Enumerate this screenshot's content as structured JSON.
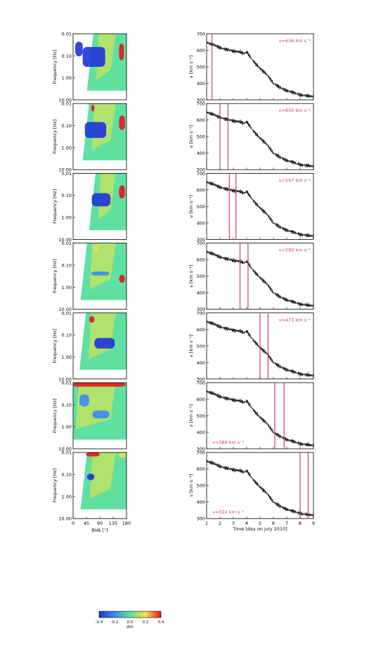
{
  "chart_data": {
    "type": "heatmap",
    "left_panels": {
      "ylabel": "Frequency [Hz]",
      "yticks": [
        "0.01",
        "0.10",
        "1.00",
        "10.00"
      ],
      "ylim": [
        0.01,
        10.0
      ],
      "yscale": "log",
      "xlabel": "θVB [°]",
      "xticks": [
        "0",
        "45",
        "90",
        "135",
        "180"
      ],
      "xlim": [
        0,
        180
      ],
      "colorbar": {
        "ticks": [
          "-0.4",
          "-0.2",
          "0.0",
          "0.2",
          "0.4"
        ],
        "label": "σm",
        "range": [
          -0.4,
          0.4
        ]
      }
    },
    "right_panels": {
      "ylabel": "v [km s⁻¹]",
      "yticks": [
        "300",
        "400",
        "500",
        "600",
        "700"
      ],
      "ylim": [
        300,
        700
      ],
      "xlabel": "Time [day on july 2010]",
      "xticks": [
        "1",
        "2",
        "3",
        "4",
        "5",
        "6",
        "7",
        "8",
        "9"
      ],
      "xlim": [
        1,
        9
      ],
      "series": {
        "x": [
          1.0,
          1.2,
          1.5,
          2.0,
          2.5,
          3.0,
          3.5,
          3.8,
          4.0,
          4.3,
          4.6,
          5.0,
          5.5,
          6.0,
          6.5,
          7.0,
          7.5,
          8.0,
          8.5,
          9.0
        ],
        "y": [
          650,
          640,
          635,
          615,
          605,
          595,
          590,
          580,
          590,
          555,
          525,
          490,
          455,
          400,
          375,
          355,
          345,
          330,
          325,
          320
        ]
      }
    },
    "rows": [
      {
        "label": "v=636 km s⁻¹",
        "label_pos": "top-right",
        "markers": [
          1.4
        ]
      },
      {
        "label": "v=600 km s⁻¹",
        "label_pos": "top-right",
        "markers": [
          2.0,
          2.6
        ]
      },
      {
        "label": "v=597 km s⁻¹",
        "label_pos": "top-right",
        "markers": [
          2.7,
          3.2
        ]
      },
      {
        "label": "v=590 km s⁻¹",
        "label_pos": "top-right",
        "markers": [
          3.5,
          4.1
        ]
      },
      {
        "label": "v=473 km s⁻¹",
        "label_pos": "top-right",
        "markers": [
          5.0,
          5.6
        ]
      },
      {
        "label": "v=388 km s⁻¹",
        "label_pos": "bottom-left",
        "markers": [
          6.1,
          6.8
        ]
      },
      {
        "label": "v=322 km s⁻¹",
        "label_pos": "bottom-left",
        "markers": [
          8.0,
          8.6
        ]
      }
    ],
    "colors": {
      "neg_strong": "#1f34d8",
      "neg": "#3a8cf0",
      "zero": "#5fe0a0",
      "pos": "#f2e443",
      "pos_strong": "#e8141c",
      "marker": "#c8416a",
      "trace": "#111111"
    }
  }
}
